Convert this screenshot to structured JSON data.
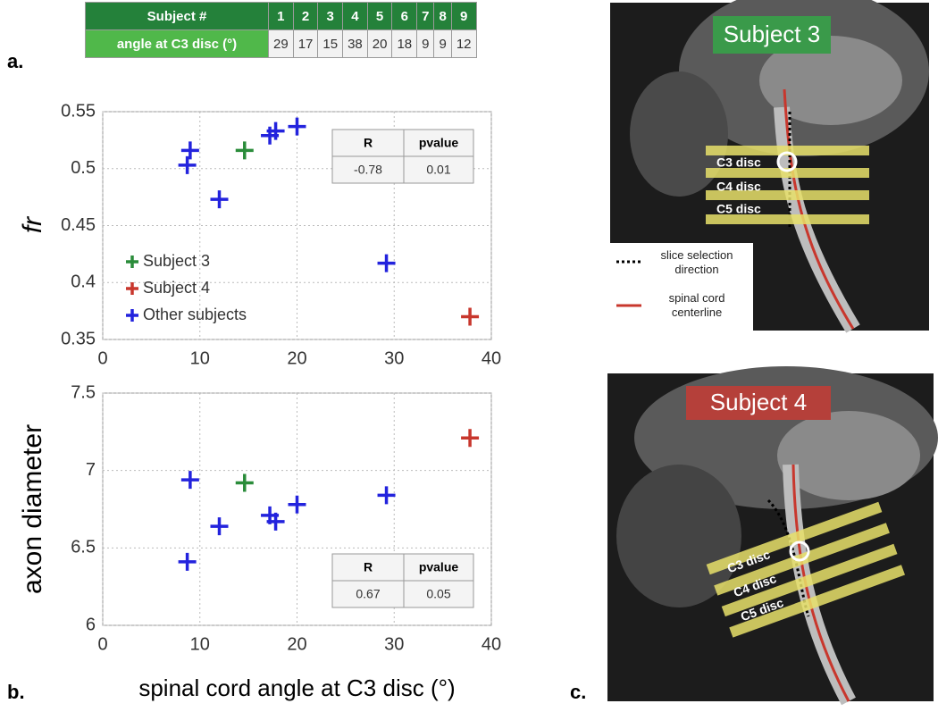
{
  "figure": {
    "panel_labels": [
      "a.",
      "b.",
      "c."
    ]
  },
  "table": {
    "header": [
      "Subject #",
      1,
      2,
      3,
      4,
      5,
      6,
      7,
      8,
      9
    ],
    "rows": [
      [
        "angle at C3 disc (°)",
        29,
        17,
        15,
        38,
        20,
        18,
        9,
        9,
        12
      ]
    ]
  },
  "chart_data": [
    {
      "type": "scatter",
      "ylabel": "fr",
      "legend": "lower left",
      "xlim": [
        0,
        40
      ],
      "xticks": [
        0,
        10,
        20,
        30,
        40
      ],
      "ylim": [
        0.35,
        0.55
      ],
      "yticks": [
        0.35,
        0.4,
        0.45,
        0.5,
        0.55
      ],
      "grid": true,
      "series": [
        {
          "name": "Subject 3",
          "color": "#2a8c3a",
          "x": [
            14.6
          ],
          "y": [
            0.516
          ]
        },
        {
          "name": "Subject 4",
          "color": "#c8372d",
          "x": [
            37.8
          ],
          "y": [
            0.37
          ]
        },
        {
          "name": "Other subjects",
          "color": "#2323dd",
          "x": [
            8.7,
            9,
            12,
            17.2,
            17.8,
            20,
            29.2
          ],
          "y": [
            0.503,
            0.516,
            0.473,
            0.529,
            0.533,
            0.537,
            0.417
          ]
        }
      ],
      "stats": {
        "header": [
          "R",
          "pvalue"
        ],
        "values": [
          -0.78,
          0.01
        ]
      }
    },
    {
      "type": "scatter",
      "ylabel": "axon diameter",
      "xlabel": "spinal cord angle at C3 disc (°)",
      "xlim": [
        0,
        40
      ],
      "xticks": [
        0,
        10,
        20,
        30,
        40
      ],
      "ylim": [
        6,
        7.5
      ],
      "yticks": [
        6,
        6.5,
        7,
        7.5
      ],
      "grid": true,
      "series": [
        {
          "name": "Subject 3",
          "color": "#2a8c3a",
          "x": [
            14.6
          ],
          "y": [
            6.92
          ]
        },
        {
          "name": "Subject 4",
          "color": "#c8372d",
          "x": [
            37.8
          ],
          "y": [
            7.21
          ]
        },
        {
          "name": "Other subjects",
          "color": "#2323dd",
          "x": [
            8.7,
            9,
            12,
            17.2,
            17.8,
            20,
            29.2
          ],
          "y": [
            6.41,
            6.94,
            6.64,
            6.71,
            6.67,
            6.78,
            6.84
          ]
        }
      ],
      "stats": {
        "header": [
          "R",
          "pvalue"
        ],
        "values": [
          0.67,
          0.05
        ]
      }
    }
  ],
  "images": [
    {
      "title": "Subject 3",
      "labels": [
        "C3 disc",
        "C4 disc",
        "C5 disc"
      ],
      "legend": [
        "slice selection direction",
        "spinal cord centerline"
      ]
    },
    {
      "title": "Subject 4",
      "labels": [
        "C3 disc",
        "C4 disc",
        "C5 disc"
      ]
    }
  ]
}
